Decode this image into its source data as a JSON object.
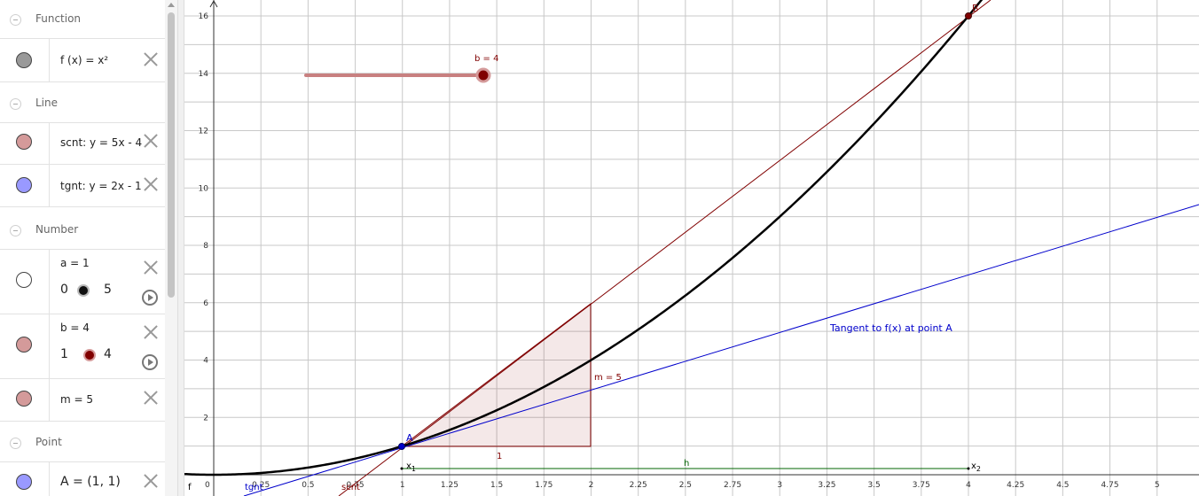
{
  "algebra": {
    "groups": {
      "function": "Function",
      "line": "Line",
      "number": "Number",
      "point": "Point"
    },
    "items": {
      "f": {
        "definition": "f (x)  =  x²",
        "color": "#999999"
      },
      "scnt": {
        "definition": "scnt: y = 5x - 4",
        "color": "#d49a9a"
      },
      "tgnt": {
        "definition": "tgnt: y = 2x - 1",
        "color": "#9999ff"
      },
      "a": {
        "definition": "a = 1",
        "min": "0",
        "max": "5",
        "color": "#ffffff",
        "value": 1
      },
      "b": {
        "definition": "b = 4",
        "min": "1",
        "max": "4",
        "color": "#d49a9a",
        "value": 4
      },
      "m": {
        "definition": "m = 5",
        "color": "#d49a9a"
      },
      "A": {
        "definition": "A = (1, 1)",
        "color": "#9999ff"
      }
    }
  },
  "graph": {
    "colors": {
      "curve": "#000000",
      "secant": "#800000",
      "tangent": "#0000cc",
      "slope_triangle": "#800000",
      "h_segment": "#006400",
      "grid": "#c8c8c8"
    },
    "x_ticks": [
      "0",
      "0.25",
      "0.5",
      "0.75",
      "1",
      "1.25",
      "1.5",
      "1.75",
      "2",
      "2.25",
      "2.5",
      "2.75",
      "3",
      "3.25",
      "3.5",
      "3.75",
      "4",
      "4.25",
      "4.5",
      "4.75",
      "5"
    ],
    "y_ticks": [
      "2",
      "4",
      "6",
      "8",
      "10",
      "12",
      "14",
      "16"
    ],
    "labels": {
      "point_A": "A",
      "point_B": "B",
      "slider_b": "b = 4",
      "slope_m": "m = 5",
      "slope_run": "1",
      "h": "h",
      "x1": "x",
      "x1_sub": "1",
      "x2": "x",
      "x2_sub": "2",
      "tangent_caption": "Tangent to f(x) at point A",
      "tgnt": "tgnt",
      "scnt": "scnt",
      "f": "f"
    }
  }
}
